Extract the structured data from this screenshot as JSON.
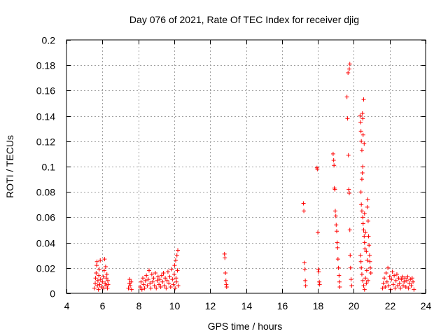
{
  "chart_data": {
    "type": "scatter",
    "title": "Day 076 of 2021, Rate Of TEC Index for receiver djig",
    "xlabel": "GPS time / hours",
    "ylabel": "ROTI / TECUs",
    "xlim": [
      4,
      24
    ],
    "ylim": [
      0,
      0.2
    ],
    "xticks": [
      4,
      6,
      8,
      10,
      12,
      14,
      16,
      18,
      20,
      22,
      24
    ],
    "yticks": [
      0,
      0.02,
      0.04,
      0.06,
      0.08,
      0.1,
      0.12,
      0.14,
      0.16,
      0.18,
      0.2
    ],
    "xtick_labels": [
      "4",
      "6",
      "8",
      "10",
      "12",
      "14",
      "16",
      "18",
      "20",
      "22",
      "24"
    ],
    "ytick_labels": [
      "0",
      "0.02",
      "0.04",
      "0.06",
      "0.08",
      "0.1",
      "0.12",
      "0.14",
      "0.16",
      "0.18",
      "0.2"
    ],
    "grid": true,
    "marker": "+",
    "color": "#ff0000",
    "series": [
      {
        "name": "ROTI",
        "points": [
          [
            5.55,
            0.004
          ],
          [
            5.6,
            0.008
          ],
          [
            5.62,
            0.012
          ],
          [
            5.65,
            0.016
          ],
          [
            5.68,
            0.022
          ],
          [
            5.7,
            0.025
          ],
          [
            5.72,
            0.006
          ],
          [
            5.75,
            0.01
          ],
          [
            5.78,
            0.003
          ],
          [
            5.8,
            0.014
          ],
          [
            5.82,
            0.019
          ],
          [
            5.85,
            0.007
          ],
          [
            5.88,
            0.026
          ],
          [
            5.9,
            0.011
          ],
          [
            5.95,
            0.005
          ],
          [
            6.0,
            0.009
          ],
          [
            6.05,
            0.013
          ],
          [
            6.08,
            0.004
          ],
          [
            6.1,
            0.018
          ],
          [
            6.12,
            0.027
          ],
          [
            6.15,
            0.008
          ],
          [
            6.18,
            0.021
          ],
          [
            6.2,
            0.006
          ],
          [
            6.22,
            0.012
          ],
          [
            6.25,
            0.015
          ],
          [
            6.28,
            0.004
          ],
          [
            6.3,
            0.01
          ],
          [
            6.32,
            0.007
          ],
          [
            7.45,
            0.004
          ],
          [
            7.5,
            0.008
          ],
          [
            7.52,
            0.011
          ],
          [
            7.55,
            0.006
          ],
          [
            7.6,
            0.009
          ],
          [
            7.62,
            0.003
          ],
          [
            8.1,
            0.005
          ],
          [
            8.15,
            0.009
          ],
          [
            8.2,
            0.003
          ],
          [
            8.25,
            0.012
          ],
          [
            8.3,
            0.007
          ],
          [
            8.35,
            0.004
          ],
          [
            8.4,
            0.01
          ],
          [
            8.45,
            0.014
          ],
          [
            8.5,
            0.006
          ],
          [
            8.55,
            0.011
          ],
          [
            8.6,
            0.018
          ],
          [
            8.65,
            0.008
          ],
          [
            8.7,
            0.004
          ],
          [
            8.75,
            0.015
          ],
          [
            8.8,
            0.009
          ],
          [
            8.85,
            0.012
          ],
          [
            8.9,
            0.006
          ],
          [
            8.95,
            0.016
          ],
          [
            9.0,
            0.004
          ],
          [
            9.05,
            0.01
          ],
          [
            9.1,
            0.013
          ],
          [
            9.15,
            0.007
          ],
          [
            9.2,
            0.011
          ],
          [
            9.25,
            0.005
          ],
          [
            9.3,
            0.014
          ],
          [
            9.35,
            0.009
          ],
          [
            9.4,
            0.016
          ],
          [
            9.45,
            0.006
          ],
          [
            9.5,
            0.012
          ],
          [
            9.55,
            0.004
          ],
          [
            9.6,
            0.01
          ],
          [
            9.65,
            0.017
          ],
          [
            9.7,
            0.008
          ],
          [
            9.75,
            0.013
          ],
          [
            9.8,
            0.005
          ],
          [
            9.85,
            0.019
          ],
          [
            9.9,
            0.011
          ],
          [
            9.95,
            0.007
          ],
          [
            10.0,
            0.015
          ],
          [
            10.02,
            0.022
          ],
          [
            10.05,
            0.004
          ],
          [
            10.08,
            0.026
          ],
          [
            10.1,
            0.012
          ],
          [
            10.12,
            0.009
          ],
          [
            10.15,
            0.03
          ],
          [
            10.18,
            0.018
          ],
          [
            10.2,
            0.034
          ],
          [
            10.22,
            0.006
          ],
          [
            12.8,
            0.031
          ],
          [
            12.82,
            0.028
          ],
          [
            12.85,
            0.016
          ],
          [
            12.88,
            0.01
          ],
          [
            12.9,
            0.007
          ],
          [
            12.92,
            0.005
          ],
          [
            17.2,
            0.071
          ],
          [
            17.22,
            0.065
          ],
          [
            17.25,
            0.024
          ],
          [
            17.28,
            0.019
          ],
          [
            17.3,
            0.01
          ],
          [
            17.32,
            0.006
          ],
          [
            17.95,
            0.099
          ],
          [
            17.97,
            0.098
          ],
          [
            18.0,
            0.048
          ],
          [
            18.02,
            0.019
          ],
          [
            18.05,
            0.017
          ],
          [
            18.08,
            0.009
          ],
          [
            18.1,
            0.007
          ],
          [
            18.85,
            0.11
          ],
          [
            18.88,
            0.105
          ],
          [
            18.9,
            0.101
          ],
          [
            18.92,
            0.083
          ],
          [
            18.95,
            0.082
          ],
          [
            18.97,
            0.065
          ],
          [
            19.0,
            0.061
          ],
          [
            19.02,
            0.054
          ],
          [
            19.05,
            0.049
          ],
          [
            19.08,
            0.04
          ],
          [
            19.1,
            0.036
          ],
          [
            19.12,
            0.027
          ],
          [
            19.15,
            0.02
          ],
          [
            19.18,
            0.014
          ],
          [
            19.2,
            0.009
          ],
          [
            19.22,
            0.005
          ],
          [
            19.62,
            0.155
          ],
          [
            19.65,
            0.138
          ],
          [
            19.7,
            0.109
          ],
          [
            19.72,
            0.082
          ],
          [
            19.75,
            0.079
          ],
          [
            19.78,
            0.05
          ],
          [
            19.8,
            0.03
          ],
          [
            19.82,
            0.02
          ],
          [
            19.85,
            0.011
          ],
          [
            19.88,
            0.006
          ],
          [
            19.68,
            0.174
          ],
          [
            19.75,
            0.177
          ],
          [
            19.78,
            0.181
          ],
          [
            20.35,
            0.14
          ],
          [
            20.38,
            0.135
          ],
          [
            20.4,
            0.128
          ],
          [
            20.42,
            0.12
          ],
          [
            20.45,
            0.113
          ],
          [
            20.48,
            0.142
          ],
          [
            20.5,
            0.138
          ],
          [
            20.52,
            0.125
          ],
          [
            20.55,
            0.153
          ],
          [
            20.58,
            0.118
          ],
          [
            20.5,
            0.1
          ],
          [
            20.48,
            0.095
          ],
          [
            20.45,
            0.09
          ],
          [
            20.4,
            0.08
          ],
          [
            20.42,
            0.07
          ],
          [
            20.45,
            0.065
          ],
          [
            20.5,
            0.06
          ],
          [
            20.52,
            0.055
          ],
          [
            20.55,
            0.05
          ],
          [
            20.58,
            0.045
          ],
          [
            20.6,
            0.04
          ],
          [
            20.62,
            0.035
          ],
          [
            20.38,
            0.03
          ],
          [
            20.4,
            0.025
          ],
          [
            20.42,
            0.02
          ],
          [
            20.45,
            0.015
          ],
          [
            20.5,
            0.01
          ],
          [
            20.55,
            0.006
          ],
          [
            20.6,
            0.003
          ],
          [
            20.65,
            0.012
          ],
          [
            20.7,
            0.008
          ],
          [
            20.72,
            0.018
          ],
          [
            20.75,
            0.068
          ],
          [
            20.78,
            0.074
          ],
          [
            20.8,
            0.057
          ],
          [
            20.82,
            0.045
          ],
          [
            20.85,
            0.038
          ],
          [
            20.88,
            0.03
          ],
          [
            20.9,
            0.025
          ],
          [
            20.92,
            0.02
          ],
          [
            20.95,
            0.016
          ],
          [
            20.6,
            0.063
          ],
          [
            20.65,
            0.048
          ],
          [
            20.7,
            0.033
          ],
          [
            20.75,
            0.026
          ],
          [
            20.8,
            0.01
          ],
          [
            21.6,
            0.004
          ],
          [
            21.65,
            0.008
          ],
          [
            21.7,
            0.012
          ],
          [
            21.75,
            0.005
          ],
          [
            21.8,
            0.016
          ],
          [
            21.85,
            0.009
          ],
          [
            21.9,
            0.02
          ],
          [
            21.95,
            0.006
          ],
          [
            22.0,
            0.013
          ],
          [
            22.05,
            0.003
          ],
          [
            22.1,
            0.011
          ],
          [
            22.15,
            0.017
          ],
          [
            22.2,
            0.007
          ],
          [
            22.25,
            0.014
          ],
          [
            22.3,
            0.004
          ],
          [
            22.35,
            0.01
          ],
          [
            22.4,
            0.015
          ],
          [
            22.45,
            0.006
          ],
          [
            22.5,
            0.012
          ],
          [
            22.55,
            0.008
          ],
          [
            22.6,
            0.004
          ],
          [
            22.65,
            0.011
          ],
          [
            22.7,
            0.013
          ],
          [
            22.75,
            0.006
          ],
          [
            22.8,
            0.009
          ],
          [
            22.85,
            0.012
          ],
          [
            22.9,
            0.005
          ],
          [
            22.95,
            0.01
          ],
          [
            23.0,
            0.013
          ],
          [
            23.05,
            0.004
          ],
          [
            23.1,
            0.008
          ],
          [
            23.15,
            0.011
          ],
          [
            23.2,
            0.006
          ],
          [
            23.25,
            0.012
          ],
          [
            23.3,
            0.009
          ],
          [
            23.35,
            0.003
          ]
        ]
      }
    ]
  }
}
